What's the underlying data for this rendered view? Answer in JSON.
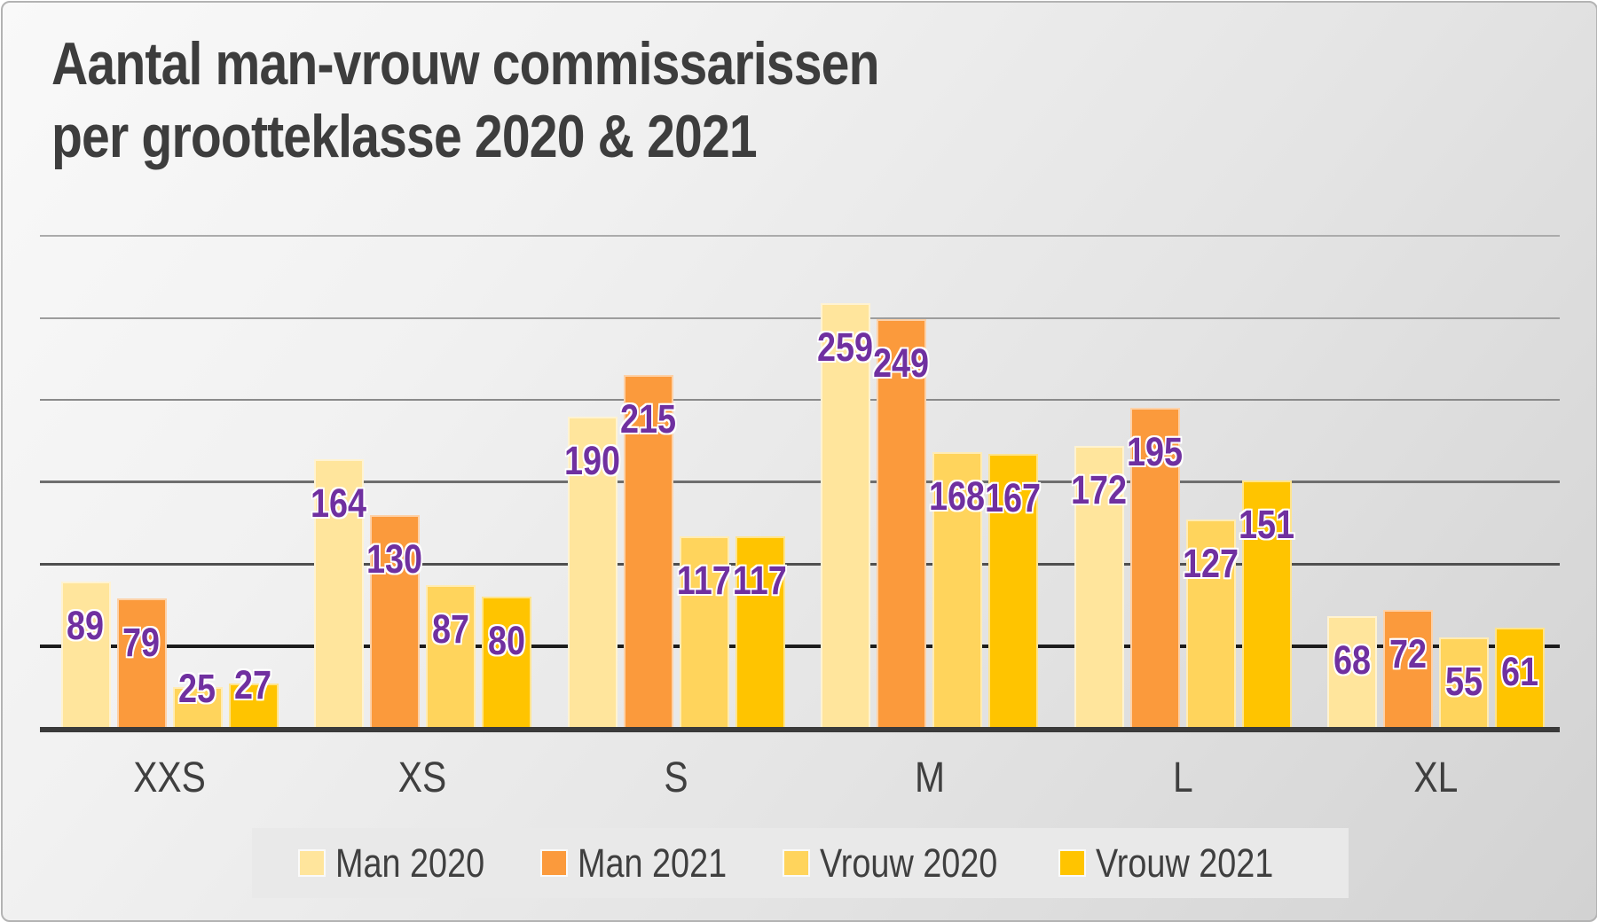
{
  "title": {
    "line1": "Aantal man-vrouw commissarissen",
    "line2": "per grootteklasse 2020 & 2021",
    "color": "#3d3d3d"
  },
  "chart_data": {
    "type": "bar",
    "title": "Aantal man-vrouw commissarissen per grootteklasse 2020 & 2021",
    "categories": [
      "XXS",
      "XS",
      "S",
      "M",
      "L",
      "XL"
    ],
    "series": [
      {
        "name": "Man 2020",
        "color": "#FFE59C",
        "values": [
          89,
          164,
          190,
          259,
          172,
          68
        ]
      },
      {
        "name": "Man 2021",
        "color": "#FB9A3C",
        "values": [
          79,
          130,
          215,
          249,
          195,
          72
        ]
      },
      {
        "name": "Vrouw 2020",
        "color": "#FFD45C",
        "values": [
          25,
          87,
          117,
          168,
          127,
          55
        ]
      },
      {
        "name": "Vrouw 2021",
        "color": "#FFC400",
        "values": [
          27,
          80,
          117,
          167,
          151,
          61
        ]
      }
    ],
    "xlabel": "",
    "ylabel": "",
    "ylim": [
      0,
      300
    ],
    "gridline_step": 50,
    "grid_on": true,
    "y_tick_labels_visible": false,
    "legend_position": "bottom",
    "data_label_color": "#7030A0",
    "axis_color": "#3a3a3a",
    "gridline_colors_bottom_to_top": [
      "#1c1c1c",
      "#4f4f4f",
      "#6e6e6e",
      "#8a8a8a",
      "#9d9d9d",
      "#ababab"
    ],
    "slide_background": [
      "#f9f9f9",
      "#d2d2d2"
    ],
    "legend_background": "#e9e9e9"
  }
}
